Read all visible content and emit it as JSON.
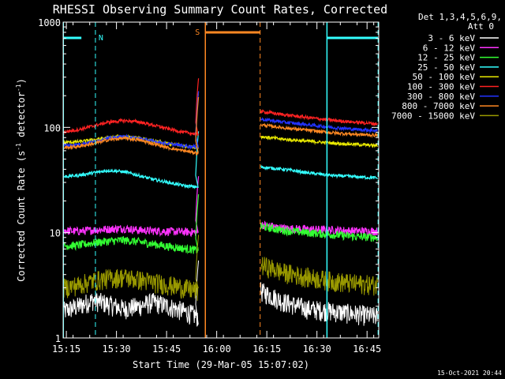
{
  "chart_data": {
    "type": "line",
    "title": "RHESSI Observing Summary Count Rates, Corrected",
    "xlabel": "Start Time (29-Mar-05 15:07:02)",
    "ylabel_main": "Corrected Count Rate (s",
    "ylabel_sup1": "-1",
    "ylabel_mid": " detector",
    "ylabel_sup2": "-1",
    "ylabel_end": ")",
    "yscale": "log",
    "ylim": [
      1,
      1000
    ],
    "xlim_min": [
      7.033,
      101.5
    ],
    "xtick_minutes": [
      8,
      23,
      38,
      53,
      68,
      83,
      98
    ],
    "xtick_labels": [
      "15:15",
      "15:30",
      "15:45",
      "16:00",
      "16:15",
      "16:30",
      "16:45"
    ],
    "yticks": [
      1,
      10,
      100,
      1000
    ],
    "ytick_labels": [
      "1",
      "10",
      "100",
      "1000"
    ],
    "legend": {
      "header1": "Det 1,3,4,5,6,9,",
      "header2": "Att 0",
      "placement": "top-right"
    },
    "series": [
      {
        "name": "3 - 6 keV",
        "color": "#ffffff",
        "pre": [
          1.8,
          2.0,
          2.3,
          2.1,
          1.9,
          2.0,
          2.2,
          2.0,
          1.8,
          1.6
        ],
        "post": [
          2.8,
          2.2,
          1.9,
          1.8,
          1.7,
          1.6
        ]
      },
      {
        "name": "6 - 12 keV",
        "color": "#ff33ff",
        "pre": [
          10.5,
          10.3,
          10.6,
          10.8,
          11.0,
          10.6,
          10.4,
          10.3,
          10.2,
          10.1
        ],
        "post": [
          12.0,
          11.0,
          10.8,
          10.6,
          10.4,
          10.3
        ]
      },
      {
        "name": "12 - 25 keV",
        "color": "#33ff33",
        "pre": [
          7.5,
          7.6,
          8.0,
          8.3,
          8.5,
          8.2,
          7.8,
          7.4,
          7.1,
          6.8
        ],
        "post": [
          11.5,
          10.5,
          10.0,
          9.6,
          9.2,
          9.0
        ]
      },
      {
        "name": "25 - 50 keV",
        "color": "#33ffff",
        "pre": [
          34,
          35,
          37,
          39,
          38,
          35,
          32,
          30,
          28,
          27
        ],
        "post": [
          42,
          40,
          37,
          35,
          34,
          33
        ]
      },
      {
        "name": "50 - 100 keV",
        "color": "#e8e800",
        "pre": [
          72,
          73,
          76,
          80,
          82,
          79,
          74,
          70,
          67,
          64
        ],
        "post": [
          82,
          77,
          74,
          71,
          69,
          67
        ]
      },
      {
        "name": "100 - 300 keV",
        "color": "#ff2222",
        "pre": [
          90,
          95,
          103,
          112,
          116,
          113,
          105,
          97,
          90,
          86
        ],
        "post": [
          142,
          132,
          124,
          117,
          112,
          108
        ]
      },
      {
        "name": "300 - 800 keV",
        "color": "#2233ff",
        "pre": [
          67,
          69,
          73,
          79,
          82,
          79,
          74,
          70,
          67,
          65
        ],
        "post": [
          120,
          112,
          106,
          100,
          96,
          93
        ]
      },
      {
        "name": "800 - 7000 keV",
        "color": "#ff8822",
        "pre": [
          64,
          66,
          70,
          76,
          79,
          76,
          70,
          64,
          60,
          57
        ],
        "post": [
          106,
          99,
          94,
          89,
          86,
          84
        ]
      },
      {
        "name": "7000 - 15000 keV",
        "color": "#999900",
        "pre": [
          3.0,
          3.2,
          3.5,
          3.7,
          3.8,
          3.6,
          3.4,
          3.2,
          3.0,
          2.8
        ],
        "post": [
          5.0,
          4.2,
          3.8,
          3.5,
          3.3,
          3.2
        ]
      }
    ],
    "data_gap_minutes": [
      47.5,
      66.0
    ],
    "annotations": {
      "night_label": "N",
      "saa_label": "S",
      "night_bars_min": [
        [
          7.1,
          12.5
        ],
        [
          86.0,
          101.3
        ]
      ],
      "saa_bar_min": [
        49.5,
        66.0
      ],
      "cyan_solid_min": [
        7.1,
        86.0
      ],
      "cyan_dashed_min": [
        16.7,
        101.3
      ],
      "orange_solid_min": [
        49.6
      ],
      "orange_dashed_min": [
        66.0
      ]
    },
    "footer_date": "15-Oct-2021 20:44"
  }
}
